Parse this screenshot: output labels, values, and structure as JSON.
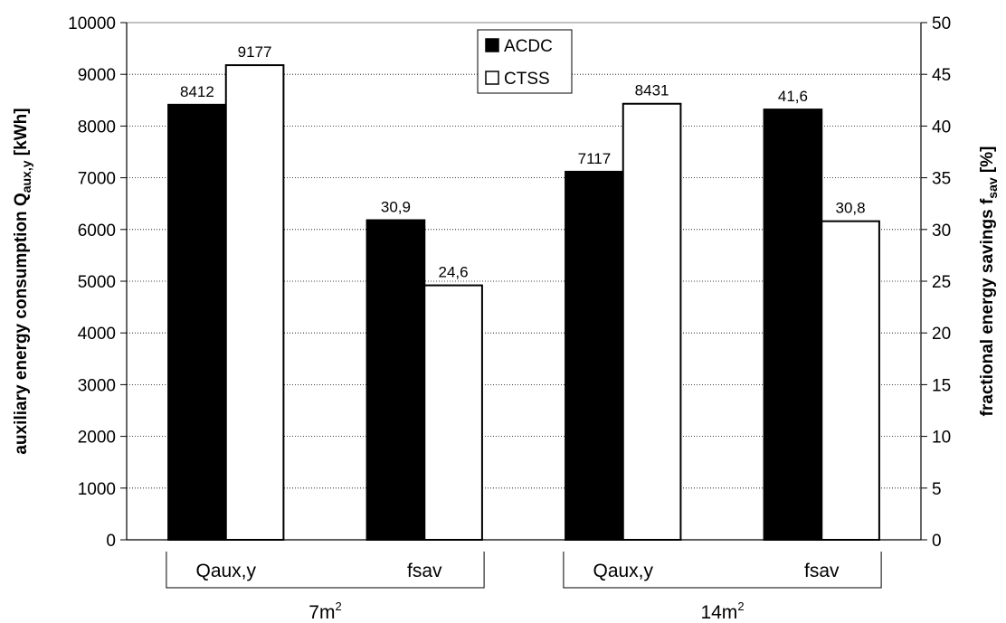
{
  "chart_data": {
    "type": "bar",
    "groups": [
      {
        "label": "7m²",
        "base": "7m",
        "sup": "2",
        "categories": [
          "Qaux,y",
          "fsav"
        ]
      },
      {
        "label": "14m²",
        "base": "14m",
        "sup": "2",
        "categories": [
          "Qaux,y",
          "fsav"
        ]
      }
    ],
    "categories": [
      "Qaux,y",
      "fsav",
      "Qaux,y",
      "fsav"
    ],
    "series": [
      {
        "name": "ACDC",
        "color": "#000000",
        "values": [
          8412,
          30.9,
          7117,
          41.6
        ],
        "labels": [
          "8412",
          "30,9",
          "7117",
          "41,6"
        ],
        "axis": [
          "left",
          "right",
          "left",
          "right"
        ]
      },
      {
        "name": "CTSS",
        "color": "#ffffff",
        "values": [
          9177,
          24.6,
          8431,
          30.8
        ],
        "labels": [
          "9177",
          "24,6",
          "8431",
          "30,8"
        ],
        "axis": [
          "left",
          "right",
          "left",
          "right"
        ]
      }
    ],
    "y_left": {
      "label_main": "auxiliary energy consumption  Q",
      "label_sub": "aux,y",
      "label_unit": " [kWh]",
      "ylim": [
        0,
        10000
      ],
      "ticks": [
        "0",
        "1000",
        "2000",
        "3000",
        "4000",
        "5000",
        "6000",
        "7000",
        "8000",
        "9000",
        "10000"
      ]
    },
    "y_right": {
      "label_main": "fractional energy savings  f",
      "label_sub": "sav",
      "label_unit": " [%]",
      "ylim": [
        0,
        50
      ],
      "ticks": [
        "0",
        "5",
        "10",
        "15",
        "20",
        "25",
        "30",
        "35",
        "40",
        "45",
        "50"
      ]
    },
    "grid": true,
    "legend_position": "top-center"
  }
}
